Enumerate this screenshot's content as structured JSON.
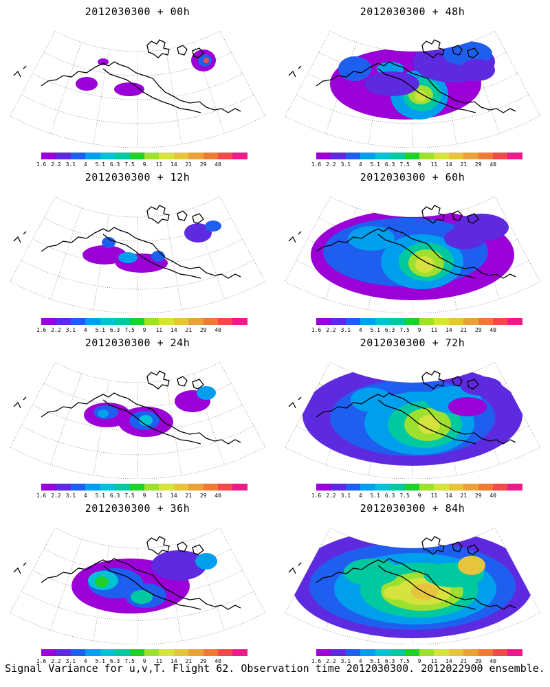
{
  "footer": "Signal Variance for u,v,T. Flight 62. Observation time 2012030300. 2012022900 ensemble.",
  "colorbar": {
    "labels": [
      "1.6",
      "2.2",
      "3.1",
      "4",
      "5.1",
      "6.3",
      "7.5",
      "9",
      "11",
      "14",
      "21",
      "29",
      "40"
    ],
    "colors": [
      "#9b00d7",
      "#5e2ae0",
      "#1f5ff0",
      "#009fee",
      "#00c2d6",
      "#00c9a0",
      "#1fcf2a",
      "#9ee02f",
      "#d6e23e",
      "#e6c43e",
      "#e9a23a",
      "#ee7a35",
      "#f04b4a",
      "#ee1a8a"
    ]
  },
  "chart_data": [
    {
      "type": "heatmap",
      "title": "2012030300 + 00h",
      "colorbar": [
        "1.6",
        "2.2",
        "3.1",
        "4",
        "5.1",
        "6.3",
        "7.5",
        "9",
        "11",
        "14",
        "21",
        "29",
        "40"
      ]
    },
    {
      "type": "heatmap",
      "title": "2012030300 + 48h",
      "colorbar": [
        "1.6",
        "2.2",
        "3.1",
        "4",
        "5.1",
        "6.3",
        "7.5",
        "9",
        "11",
        "14",
        "21",
        "29",
        "40"
      ]
    },
    {
      "type": "heatmap",
      "title": "2012030300 + 12h",
      "colorbar": [
        "1.6",
        "2.2",
        "3.1",
        "4",
        "5.1",
        "6.3",
        "7.5",
        "9",
        "11",
        "14",
        "21",
        "29",
        "40"
      ]
    },
    {
      "type": "heatmap",
      "title": "2012030300 + 60h",
      "colorbar": [
        "1.6",
        "2.2",
        "3.1",
        "4",
        "5.1",
        "6.3",
        "7.5",
        "9",
        "11",
        "14",
        "21",
        "29",
        "40"
      ]
    },
    {
      "type": "heatmap",
      "title": "2012030300 + 24h",
      "colorbar": [
        "1.6",
        "2.2",
        "3.1",
        "4",
        "5.1",
        "6.3",
        "7.5",
        "9",
        "11",
        "14",
        "21",
        "29",
        "40"
      ]
    },
    {
      "type": "heatmap",
      "title": "2012030300 + 72h",
      "colorbar": [
        "1.6",
        "2.2",
        "3.1",
        "4",
        "5.1",
        "6.3",
        "7.5",
        "9",
        "11",
        "14",
        "21",
        "29",
        "40"
      ]
    },
    {
      "type": "heatmap",
      "title": "2012030300 + 36h",
      "colorbar": [
        "1.6",
        "2.2",
        "3.1",
        "4",
        "5.1",
        "6.3",
        "7.5",
        "9",
        "11",
        "14",
        "21",
        "29",
        "40"
      ]
    },
    {
      "type": "heatmap",
      "title": "2012030300 + 84h",
      "colorbar": [
        "1.6",
        "2.2",
        "3.1",
        "4",
        "5.1",
        "6.3",
        "7.5",
        "9",
        "11",
        "14",
        "21",
        "29",
        "40"
      ]
    }
  ]
}
